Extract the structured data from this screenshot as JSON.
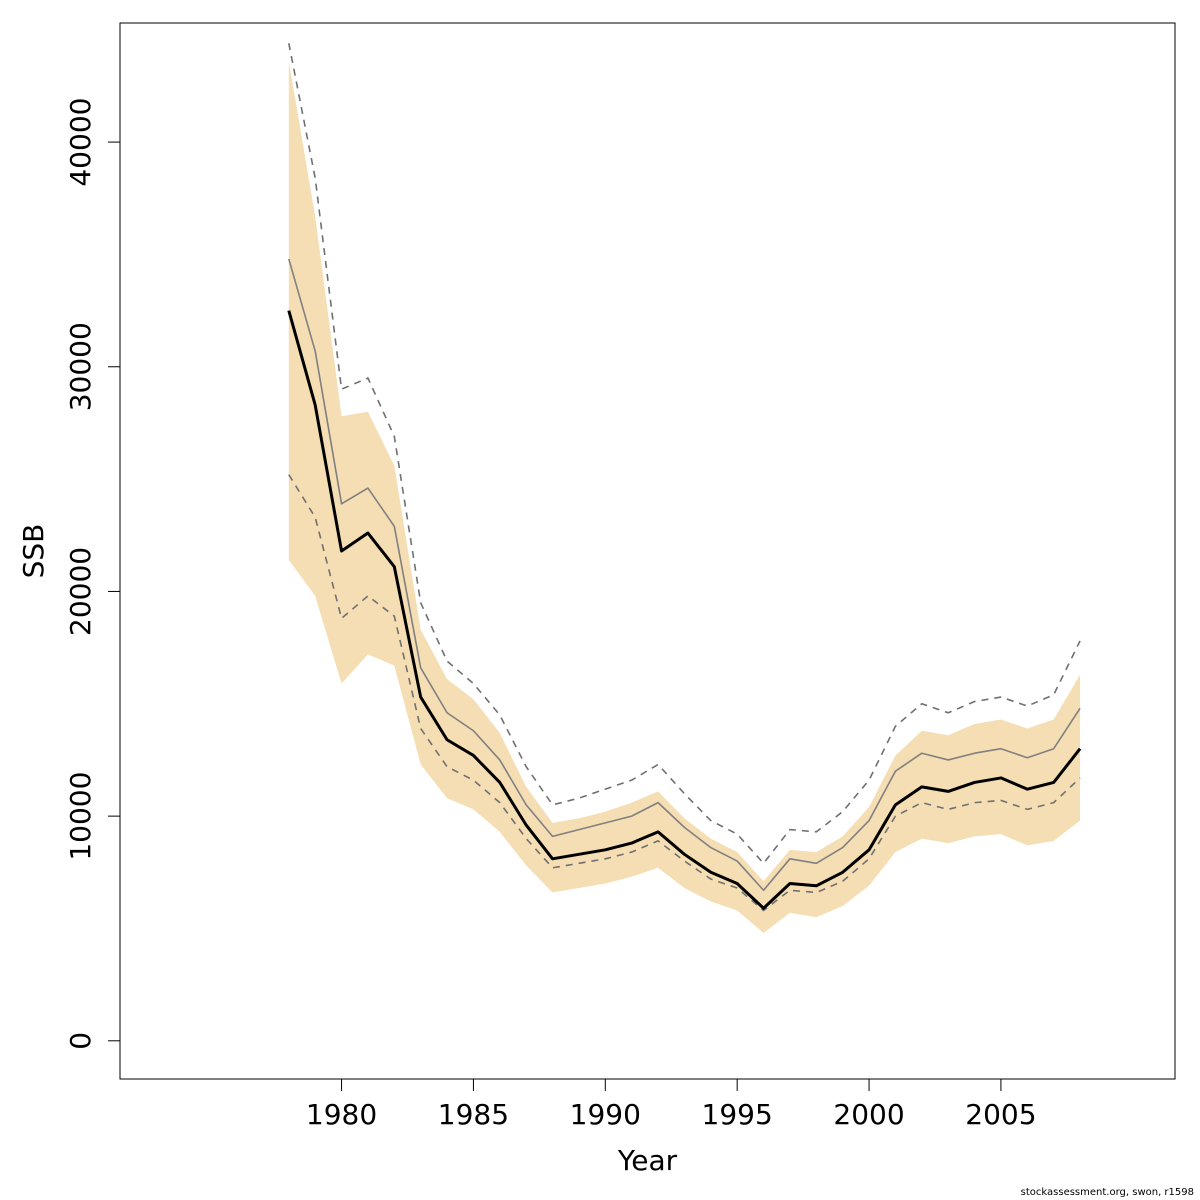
{
  "chart_data": {
    "type": "line",
    "xlabel": "Year",
    "ylabel": "SSB",
    "xlim": [
      1971.6,
      2011.6
    ],
    "ylim": [
      -1700,
      45300
    ],
    "x_ticks": [
      1980,
      1985,
      1990,
      1995,
      2000,
      2005
    ],
    "y_ticks": [
      0,
      10000,
      20000,
      30000,
      40000
    ],
    "x": [
      1978,
      1979,
      1980,
      1981,
      1982,
      1983,
      1984,
      1985,
      1986,
      1987,
      1988,
      1989,
      1990,
      1991,
      1992,
      1993,
      1994,
      1995,
      1996,
      1997,
      1998,
      1999,
      2000,
      2001,
      2002,
      2003,
      2004,
      2005,
      2006,
      2007,
      2008
    ],
    "band": {
      "color": "#f5deb3",
      "upper": [
        43600,
        36700,
        27800,
        28000,
        25600,
        18300,
        16100,
        15200,
        13700,
        11300,
        9700,
        9900,
        10200,
        10600,
        11100,
        9900,
        9000,
        8400,
        7100,
        8500,
        8400,
        9100,
        10400,
        12700,
        13800,
        13600,
        14100,
        14300,
        13900,
        14300,
        16300
      ],
      "lower": [
        21400,
        19800,
        15900,
        17200,
        16700,
        12300,
        10800,
        10300,
        9300,
        7800,
        6600,
        6800,
        7000,
        7300,
        7700,
        6800,
        6200,
        5800,
        4800,
        5700,
        5500,
        6000,
        6900,
        8400,
        9000,
        8800,
        9100,
        9200,
        8700,
        8900,
        9800
      ]
    },
    "series": [
      {
        "color": "#000000",
        "style": "solid-bold",
        "values": [
          32500,
          28300,
          21800,
          22600,
          21100,
          15300,
          13400,
          12700,
          11500,
          9600,
          8100,
          8300,
          8500,
          8800,
          9300,
          8300,
          7500,
          7000,
          5900,
          7000,
          6900,
          7500,
          8500,
          10500,
          11300,
          11100,
          11500,
          11700,
          11200,
          11500,
          13000
        ]
      },
      {
        "color": "#808080",
        "style": "solid",
        "values": [
          34800,
          30700,
          23900,
          24600,
          22900,
          16600,
          14600,
          13800,
          12500,
          10500,
          9100,
          9400,
          9700,
          10000,
          10600,
          9500,
          8600,
          8000,
          6700,
          8100,
          7900,
          8600,
          9800,
          12000,
          12800,
          12500,
          12800,
          13000,
          12600,
          13000,
          14800
        ]
      },
      {
        "color": "#707070",
        "style": "dashed",
        "values": [
          44400,
          38400,
          29000,
          29500,
          26900,
          19500,
          16900,
          15900,
          14500,
          12200,
          10500,
          10800,
          11200,
          11600,
          12300,
          11000,
          9800,
          9200,
          7900,
          9400,
          9300,
          10200,
          11600,
          14000,
          15000,
          14600,
          15100,
          15300,
          14900,
          15400,
          17800
        ]
      },
      {
        "color": "#707070",
        "style": "dashed",
        "values": [
          25200,
          23300,
          18800,
          19800,
          18900,
          13900,
          12200,
          11600,
          10600,
          9000,
          7700,
          7900,
          8100,
          8400,
          8900,
          8000,
          7200,
          6800,
          5800,
          6700,
          6600,
          7100,
          8100,
          10000,
          10600,
          10300,
          10600,
          10700,
          10300,
          10600,
          11700
        ]
      }
    ]
  },
  "footer": {
    "credit": "stockassessment.org, swon, r1598"
  }
}
